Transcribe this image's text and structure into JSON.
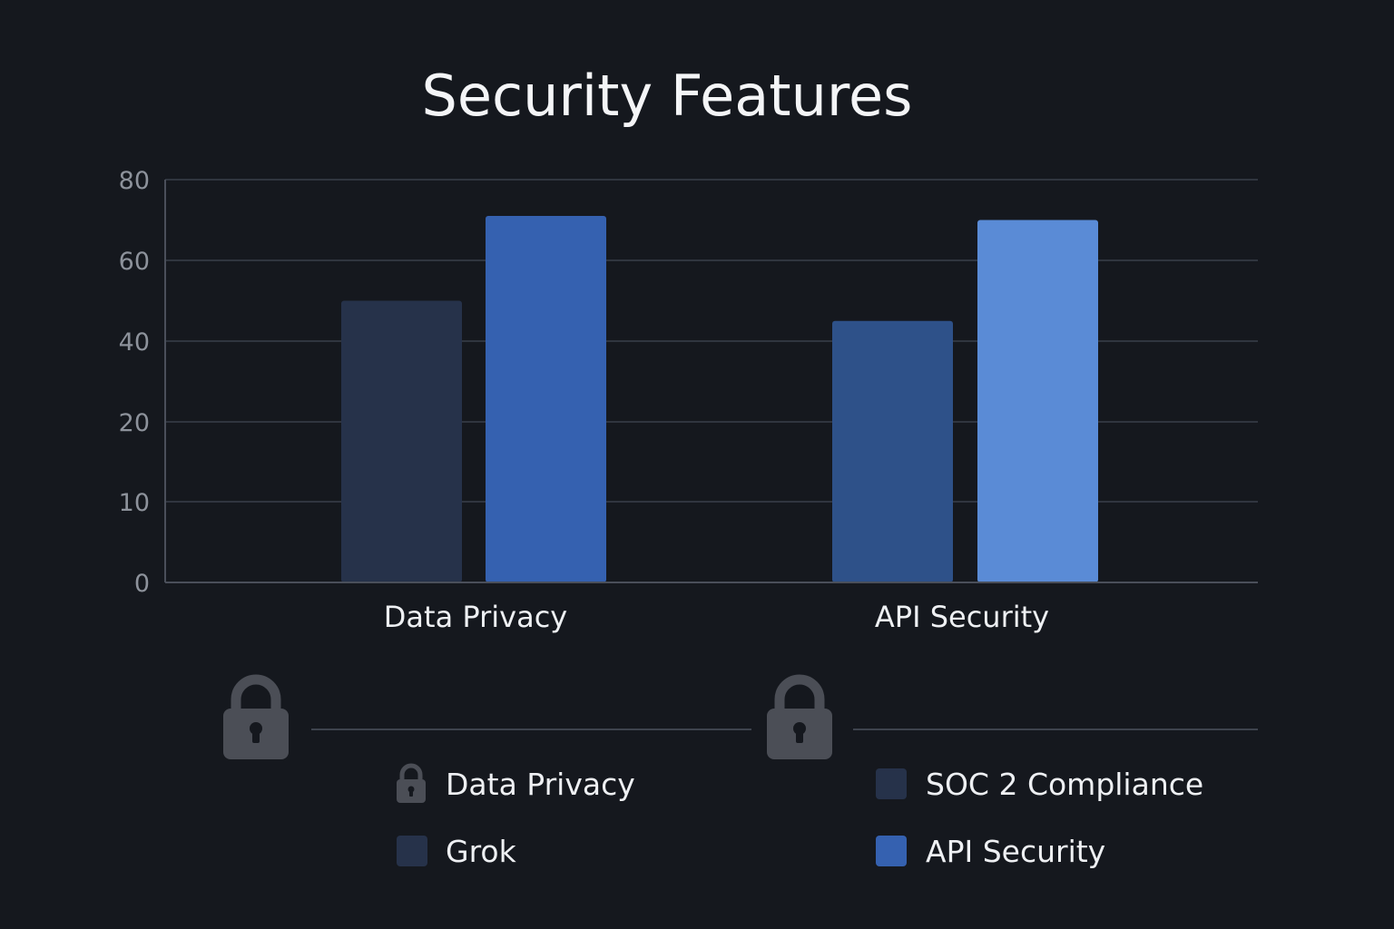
{
  "chart_data": {
    "type": "bar",
    "title": "Security Features",
    "xlabel": "",
    "ylabel": "",
    "categories": [
      "Data Privacy",
      "API Security"
    ],
    "y_ticks": [
      "0",
      "10",
      "20",
      "40",
      "60",
      "80"
    ],
    "y_tick_values": [
      0,
      10,
      20,
      40,
      60,
      80
    ],
    "ylim": [
      0,
      80
    ],
    "grid": true,
    "bars": [
      {
        "category": "Data Privacy",
        "value": 50,
        "color": "#26324a"
      },
      {
        "category": "Data Privacy",
        "value": 71,
        "color": "#3561b0"
      },
      {
        "category": "API Security",
        "value": 45,
        "color": "#2e5189"
      },
      {
        "category": "API Security",
        "value": 70,
        "color": "#5a8bd6"
      }
    ],
    "legend": {
      "placement": "bottom",
      "items": [
        {
          "label": "Data Privacy",
          "marker": "lock-icon",
          "color": "#4b4e56"
        },
        {
          "label": "SOC 2 Compliance",
          "marker": "square",
          "color": "#26324a"
        },
        {
          "label": "Grok",
          "marker": "square",
          "color": "#26324a"
        },
        {
          "label": "API Security",
          "marker": "square",
          "color": "#3561b0"
        }
      ]
    },
    "decorations": [
      {
        "icon": "lock-icon",
        "color": "#4b4e56"
      },
      {
        "icon": "lock-icon",
        "color": "#4b4e56"
      }
    ]
  },
  "colors": {
    "background": "#15181e",
    "grid": "#3a3f4a",
    "text": "#eef0f3",
    "tick_text": "#8d929b"
  }
}
